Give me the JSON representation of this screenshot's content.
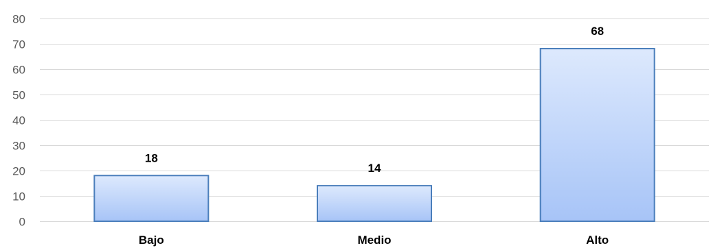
{
  "chart_data": {
    "type": "bar",
    "categories": [
      "Bajo",
      "Medio",
      "Alto"
    ],
    "values": [
      18,
      14,
      68
    ],
    "data_labels": [
      "18",
      "14",
      "68"
    ],
    "yticks": [
      0,
      10,
      20,
      30,
      40,
      50,
      60,
      70,
      80
    ],
    "ytick_labels": [
      "0",
      "10",
      "20",
      "30",
      "40",
      "50",
      "60",
      "70",
      "80"
    ],
    "ylim": [
      0,
      80
    ],
    "grid": true,
    "legend": "none",
    "colors": {
      "bar_top": "#dde9fd",
      "bar_bottom": "#a7c4f7",
      "bar_border": "#4a7ebb",
      "gridline": "#d9d9d9",
      "tick_text": "#595959",
      "label_text": "#000000"
    }
  }
}
